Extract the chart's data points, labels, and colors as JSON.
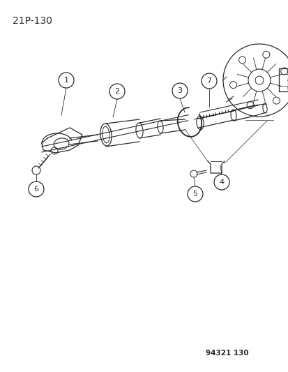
{
  "page_id": "21P-130",
  "doc_id": "94321 130",
  "background_color": "#ffffff",
  "line_color": "#2a2a2a",
  "text_color": "#2a2a2a",
  "fig_width": 4.14,
  "fig_height": 5.33,
  "dpi": 100
}
